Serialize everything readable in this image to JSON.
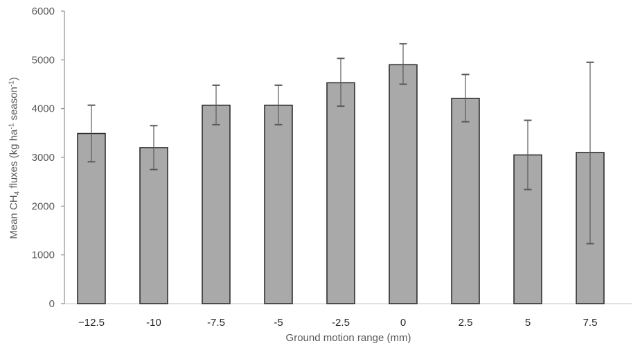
{
  "figure": {
    "background": "#ffffff"
  },
  "chart_data": {
    "type": "bar",
    "title": "",
    "xlabel": "Ground motion range (mm)",
    "ylabel": "Mean CH4 fluxes (kg ha-1 season-1)",
    "ylabel_parts": [
      {
        "text": "Mean CH",
        "script": "normal"
      },
      {
        "text": "4",
        "script": "sub"
      },
      {
        "text": " fluxes (kg ha",
        "script": "normal"
      },
      {
        "text": "-1",
        "script": "sup"
      },
      {
        "text": " season",
        "script": "normal"
      },
      {
        "text": "-1",
        "script": "sup"
      },
      {
        "text": ")",
        "script": "normal"
      }
    ],
    "categories": [
      "−12.5",
      "-10",
      "-7.5",
      "-5",
      "-2.5",
      "0",
      "2.5",
      "5",
      "7.5"
    ],
    "x_values": [
      -12.5,
      -10,
      -7.5,
      -5,
      -2.5,
      0,
      2.5,
      5,
      7.5
    ],
    "values": [
      3490,
      3200,
      4070,
      4070,
      4530,
      4900,
      4210,
      3050,
      3100
    ],
    "error_upper": [
      4070,
      3650,
      4480,
      4480,
      5030,
      5330,
      4700,
      3760,
      4950
    ],
    "error_lower": [
      2910,
      2750,
      3670,
      3670,
      4050,
      4500,
      3730,
      2340,
      1230
    ],
    "ylim": [
      0,
      6000
    ],
    "yticks": [
      0,
      1000,
      2000,
      3000,
      4000,
      5000,
      6000
    ],
    "grid": false,
    "legend": "none",
    "colors": {
      "bar_fill": "#a9a9a9",
      "bar_border": "#262626",
      "error_bar": "#595959",
      "axis_line": "#8f8f8f",
      "baseline": "#d9d9d9",
      "ytick_text": "#595959",
      "xtick_text": "#262626",
      "axis_title_text": "#595959"
    }
  }
}
